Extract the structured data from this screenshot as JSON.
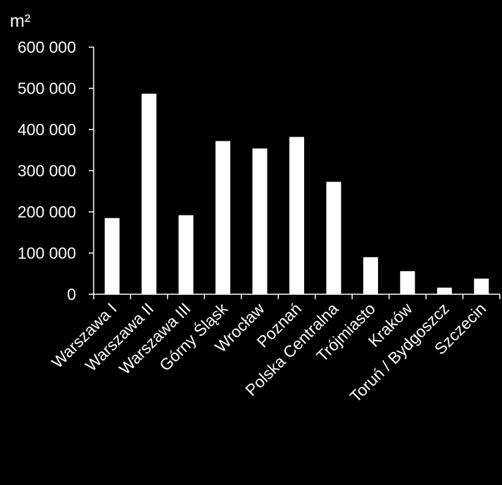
{
  "chart_data": {
    "type": "bar",
    "title": "",
    "ylabel": "m²",
    "xlabel": "",
    "ylim": [
      0,
      600000
    ],
    "yticks": [
      0,
      100000,
      200000,
      300000,
      400000,
      500000,
      600000
    ],
    "ytick_labels": [
      "0",
      "100 000",
      "200 000",
      "300 000",
      "400 000",
      "500 000",
      "600 000"
    ],
    "categories": [
      "Warszawa I",
      "Warszawa II",
      "Warszawa III",
      "Górny Śląsk",
      "Wrocław",
      "Poznań",
      "Polska Centralna",
      "Trójmiasto",
      "Kraków",
      "Toruń / Bydgoszcz",
      "Szczecin"
    ],
    "values": [
      185000,
      487000,
      192000,
      372000,
      354000,
      382000,
      273000,
      90000,
      56000,
      16000,
      38000
    ],
    "grid": false,
    "legend": "none",
    "colors": {
      "background": "#000000",
      "bar": "#ffffff",
      "axis": "#ffffff",
      "text": "#ffffff"
    }
  }
}
